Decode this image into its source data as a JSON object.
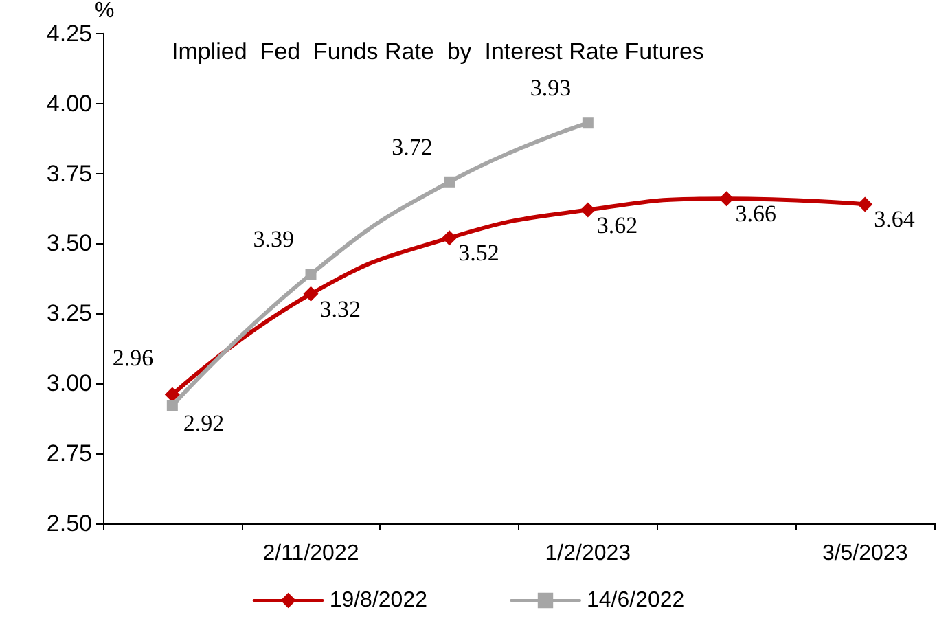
{
  "chart_data": {
    "type": "line",
    "title": "Implied  Fed  Funds Rate  by  Interest Rate Futures",
    "ylabel": "%",
    "categories": [
      null,
      "2/11/2022",
      null,
      "1/2/2023",
      null,
      "3/5/2023"
    ],
    "series": [
      {
        "name": "19/8/2022",
        "color": "#c00000",
        "marker": "diamond",
        "values": [
          2.96,
          3.32,
          3.52,
          3.62,
          3.66,
          3.64
        ]
      },
      {
        "name": "14/6/2022",
        "color": "#a6a6a6",
        "marker": "square",
        "values": [
          2.92,
          3.39,
          3.72,
          3.93,
          null,
          null
        ]
      }
    ],
    "ylim": [
      2.5,
      4.25
    ],
    "yticks": [
      {
        "value": 2.5,
        "label": "2.50"
      },
      {
        "value": 2.75,
        "label": "2.75"
      },
      {
        "value": 3,
        "label": "3.00"
      },
      {
        "value": 3.25,
        "label": "3.25"
      },
      {
        "value": 3.5,
        "label": "3.50"
      },
      {
        "value": 3.75,
        "label": "3.75"
      },
      {
        "value": 4,
        "label": "4.00"
      },
      {
        "value": 4.25,
        "label": "4.25"
      }
    ],
    "data_labels": true,
    "legend": "bottom",
    "grid": false,
    "line_style": "solid"
  }
}
